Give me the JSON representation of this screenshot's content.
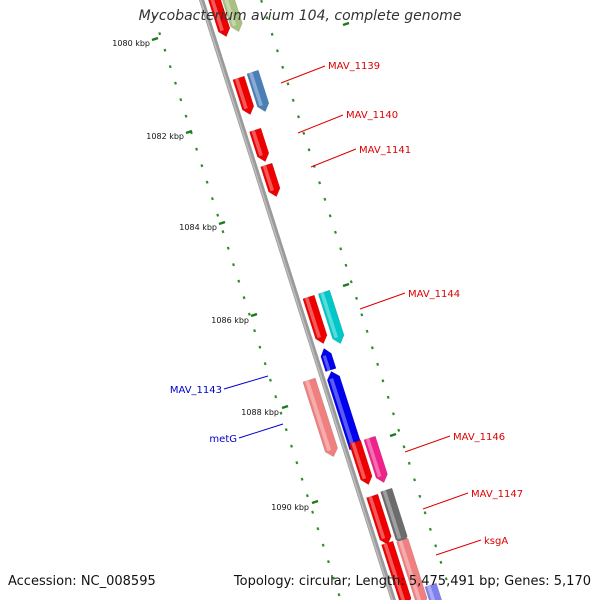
{
  "header": {
    "title": "Mycobacterium avium 104, complete genome"
  },
  "footer": {
    "accession": "Accession: NC_008595",
    "summary": "Topology: circular; Length: 5,475,491 bp; Genes: 5,170"
  },
  "ticks": [
    {
      "label": "1080 kbp"
    },
    {
      "label": "1082 kbp"
    },
    {
      "label": "1084 kbp"
    },
    {
      "label": "1086 kbp"
    },
    {
      "label": "1088 kbp"
    },
    {
      "label": "1090 kbp"
    }
  ],
  "gene_labels": [
    {
      "label": "MAV_1139",
      "color": "#dd0000"
    },
    {
      "label": "MAV_1140",
      "color": "#dd0000"
    },
    {
      "label": "MAV_1141",
      "color": "#dd0000"
    },
    {
      "label": "MAV_1144",
      "color": "#dd0000"
    },
    {
      "label": "MAV_1143",
      "color": "#0000cc"
    },
    {
      "label": "metG",
      "color": "#0000cc"
    },
    {
      "label": "MAV_1146",
      "color": "#dd0000"
    },
    {
      "label": "MAV_1147",
      "color": "#dd0000"
    },
    {
      "label": "ksgA",
      "color": "#dd0000"
    }
  ],
  "colors": {
    "backbone": "#888888",
    "tick_dash": "#228b22",
    "forward_gene": "#ee0000",
    "reverse_gene": "#0000ee"
  }
}
